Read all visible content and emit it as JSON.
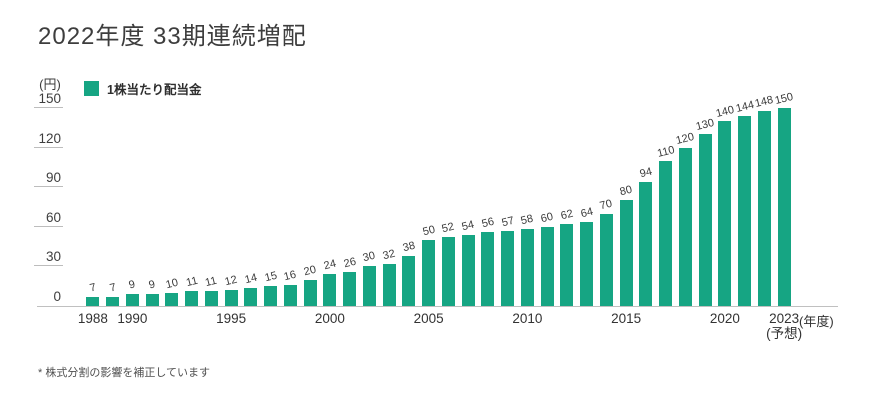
{
  "title": "2022年度 33期連続増配",
  "footnote": "* 株式分割の影響を補正しています",
  "colors": {
    "bar_green": "#16a583",
    "axis_gray": "#c0c0c0",
    "text_dark": "#3d3d3d"
  },
  "chart_data": {
    "type": "bar",
    "title": "2022年度 33期連続増配",
    "legend": "1株当たり配当金",
    "y_unit": "(円)",
    "x_unit": "(年度)",
    "ylabel": "",
    "xlabel": "",
    "ylim": [
      0,
      150
    ],
    "y_ticks": [
      0,
      30,
      60,
      90,
      120,
      150
    ],
    "grid": false,
    "legend_position": "top-left",
    "bar_color": "#16a583",
    "categories": [
      "1988",
      "1989",
      "1990",
      "1991",
      "1992",
      "1993",
      "1994",
      "1995",
      "1996",
      "1997",
      "1998",
      "1999",
      "2000",
      "2001",
      "2002",
      "2003",
      "2004",
      "2005",
      "2006",
      "2007",
      "2008",
      "2009",
      "2010",
      "2011",
      "2012",
      "2013",
      "2014",
      "2015",
      "2016",
      "2017",
      "2018",
      "2019",
      "2020",
      "2021",
      "2022",
      "2023"
    ],
    "values": [
      7,
      7,
      9,
      9,
      10,
      11,
      11,
      12,
      14,
      15,
      16,
      20,
      24,
      26,
      30,
      32,
      38,
      50,
      52,
      54,
      56,
      57,
      58,
      60,
      62,
      64,
      70,
      80,
      94,
      110,
      120,
      130,
      140,
      144,
      148,
      150
    ],
    "x_ticks": [
      {
        "label": "1988",
        "index": 0
      },
      {
        "label": "1990",
        "index": 2
      },
      {
        "label": "1995",
        "index": 7
      },
      {
        "label": "2000",
        "index": 12
      },
      {
        "label": "2005",
        "index": 17
      },
      {
        "label": "2010",
        "index": 22
      },
      {
        "label": "2015",
        "index": 27
      },
      {
        "label": "2020",
        "index": 32
      },
      {
        "label": "2023",
        "index": 35,
        "sublabel": "(予想)"
      }
    ]
  }
}
